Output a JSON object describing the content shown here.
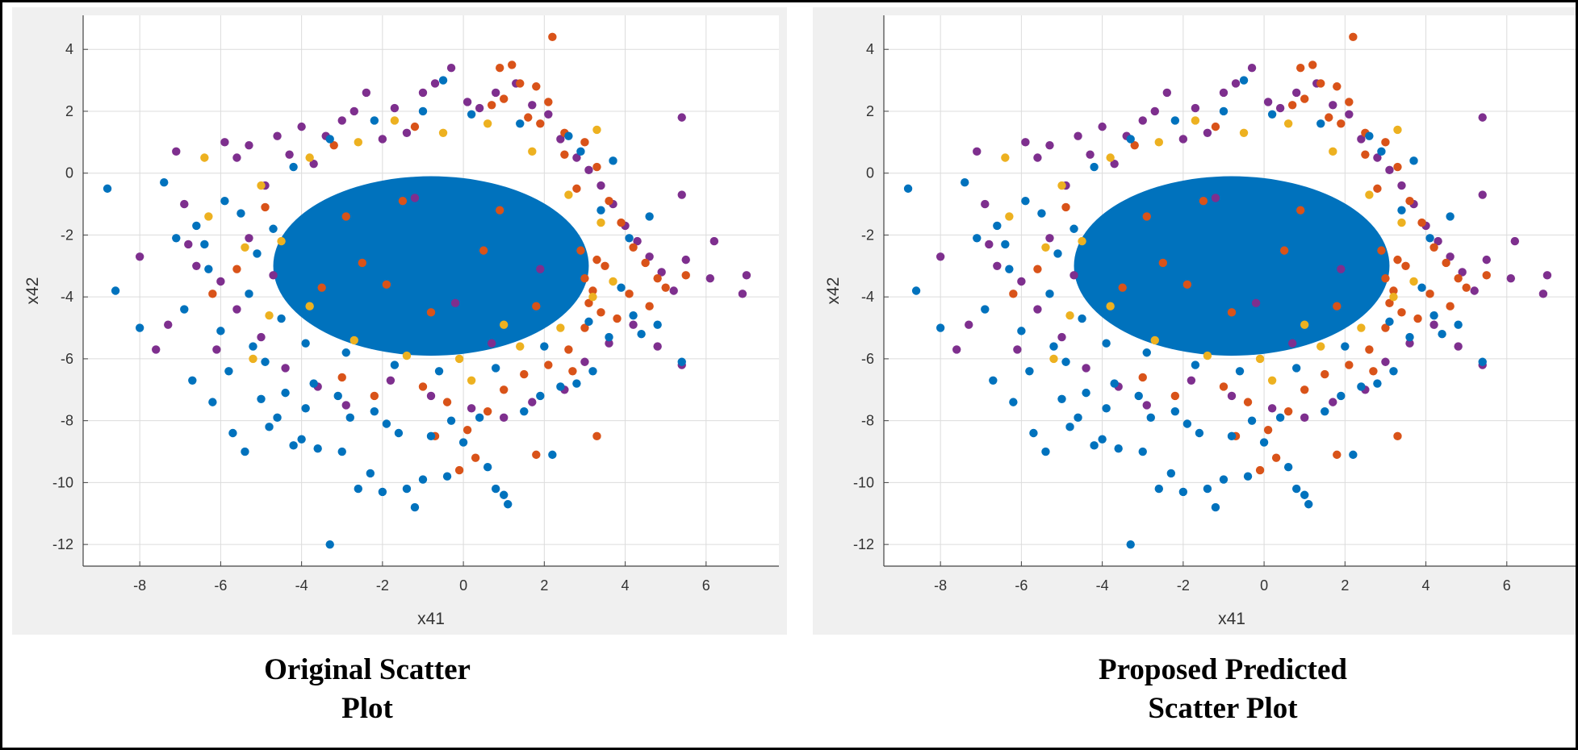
{
  "chart_data": [
    {
      "type": "scatter",
      "title": "Original Scatter Plot",
      "xlabel": "x41",
      "ylabel": "x42",
      "xlim": [
        -9.4,
        7.8
      ],
      "ylim": [
        -12.7,
        5.1
      ],
      "xticks": [
        -8,
        -6,
        -4,
        -2,
        0,
        2,
        4,
        6
      ],
      "yticks": [
        4,
        2,
        0,
        -2,
        -4,
        -6,
        -8,
        -10,
        -12
      ],
      "grid": true,
      "legend": "none",
      "series": [
        {
          "name": "class-1",
          "color": "#0072BD",
          "points": [
            [
              -8.8,
              -0.5
            ],
            [
              -8.6,
              -3.8
            ],
            [
              -8.0,
              -5.0
            ],
            [
              -7.4,
              -0.3
            ],
            [
              -7.1,
              -2.1
            ],
            [
              -6.7,
              -6.7
            ],
            [
              -6.4,
              -2.3
            ],
            [
              -6.2,
              -7.4
            ],
            [
              -6.0,
              -5.1
            ],
            [
              -5.7,
              -8.4
            ],
            [
              -5.4,
              -9.0
            ],
            [
              -5.2,
              -5.6
            ],
            [
              -5.0,
              -7.3
            ],
            [
              -4.8,
              -8.2
            ],
            [
              -4.6,
              -7.9
            ],
            [
              -4.2,
              -8.8
            ],
            [
              -4.0,
              -8.6
            ],
            [
              -3.6,
              -8.9
            ],
            [
              -3.3,
              -12.0
            ],
            [
              -3.0,
              -9.0
            ],
            [
              -2.6,
              -10.2
            ],
            [
              -2.3,
              -9.7
            ],
            [
              -2.0,
              -10.3
            ],
            [
              -1.9,
              -8.1
            ],
            [
              -1.4,
              -10.2
            ],
            [
              -1.2,
              -10.8
            ],
            [
              -1.0,
              -9.9
            ],
            [
              -0.4,
              -9.8
            ],
            [
              0.0,
              -8.7
            ],
            [
              0.6,
              -9.5
            ],
            [
              0.8,
              -10.2
            ],
            [
              1.0,
              -10.4
            ],
            [
              1.1,
              -10.7
            ],
            [
              2.2,
              -9.1
            ],
            [
              2.8,
              -6.8
            ],
            [
              3.2,
              -6.4
            ],
            [
              3.6,
              -5.3
            ],
            [
              4.2,
              -4.6
            ],
            [
              4.4,
              -5.2
            ],
            [
              4.8,
              -4.9
            ],
            [
              5.4,
              -6.1
            ],
            [
              -6.9,
              -4.4
            ],
            [
              -6.3,
              -3.1
            ],
            [
              -6.6,
              -1.7
            ],
            [
              -5.9,
              -0.9
            ],
            [
              -5.5,
              -1.3
            ],
            [
              -5.8,
              -6.4
            ],
            [
              -4.9,
              -6.1
            ],
            [
              -4.4,
              -7.1
            ],
            [
              -3.9,
              -7.6
            ],
            [
              -3.7,
              -6.8
            ],
            [
              -3.1,
              -7.2
            ],
            [
              -2.8,
              -7.9
            ],
            [
              -2.2,
              -7.7
            ],
            [
              -1.6,
              -8.4
            ],
            [
              -0.8,
              -8.5
            ],
            [
              -0.3,
              -8.0
            ],
            [
              0.4,
              -7.9
            ],
            [
              1.5,
              -7.7
            ],
            [
              1.9,
              -7.2
            ],
            [
              2.4,
              -6.9
            ],
            [
              3.9,
              -3.7
            ],
            [
              4.1,
              -2.1
            ],
            [
              4.6,
              -1.4
            ],
            [
              3.7,
              0.4
            ],
            [
              2.9,
              0.7
            ],
            [
              -4.7,
              -1.8
            ],
            [
              -5.1,
              -2.6
            ],
            [
              -5.3,
              -3.9
            ],
            [
              -4.5,
              -4.7
            ],
            [
              -3.9,
              -5.5
            ],
            [
              -2.9,
              -5.8
            ],
            [
              -1.7,
              -6.2
            ],
            [
              -0.6,
              -6.4
            ],
            [
              0.8,
              -6.3
            ],
            [
              2.0,
              -5.6
            ],
            [
              3.1,
              -4.8
            ],
            [
              3.4,
              -1.2
            ],
            [
              2.6,
              1.2
            ],
            [
              1.4,
              1.6
            ],
            [
              0.2,
              1.9
            ],
            [
              -1.0,
              2.0
            ],
            [
              -2.2,
              1.7
            ],
            [
              -3.3,
              1.1
            ],
            [
              -4.2,
              0.2
            ],
            [
              -0.5,
              3.0
            ]
          ]
        },
        {
          "name": "class-2",
          "color": "#D95319",
          "points": [
            [
              2.2,
              4.4
            ],
            [
              1.2,
              3.5
            ],
            [
              0.9,
              3.4
            ],
            [
              1.4,
              2.9
            ],
            [
              1.8,
              2.8
            ],
            [
              2.1,
              2.3
            ],
            [
              0.7,
              2.2
            ],
            [
              1.0,
              2.4
            ],
            [
              1.6,
              1.8
            ],
            [
              1.9,
              1.6
            ],
            [
              2.5,
              1.3
            ],
            [
              3.0,
              1.0
            ],
            [
              3.3,
              0.2
            ],
            [
              3.6,
              -0.9
            ],
            [
              3.9,
              -1.6
            ],
            [
              4.2,
              -2.4
            ],
            [
              4.5,
              -2.9
            ],
            [
              4.8,
              -3.4
            ],
            [
              5.0,
              -3.7
            ],
            [
              5.5,
              -3.3
            ],
            [
              3.5,
              -3.0
            ],
            [
              3.2,
              -3.8
            ],
            [
              3.1,
              -4.2
            ],
            [
              3.3,
              -2.8
            ],
            [
              2.9,
              -2.5
            ],
            [
              3.0,
              -3.4
            ],
            [
              3.4,
              -4.5
            ],
            [
              3.0,
              -5.0
            ],
            [
              2.6,
              -5.7
            ],
            [
              2.1,
              -6.2
            ],
            [
              1.5,
              -6.5
            ],
            [
              1.0,
              -7.0
            ],
            [
              0.6,
              -7.7
            ],
            [
              0.1,
              -8.3
            ],
            [
              -0.4,
              -7.4
            ],
            [
              -1.0,
              -6.9
            ],
            [
              -0.1,
              -9.6
            ],
            [
              0.3,
              -9.2
            ],
            [
              1.8,
              -9.1
            ],
            [
              3.3,
              -8.5
            ],
            [
              -0.7,
              -8.5
            ],
            [
              2.7,
              -6.4
            ],
            [
              -2.2,
              -7.2
            ],
            [
              -3.0,
              -6.6
            ],
            [
              -2.5,
              -2.9
            ],
            [
              -3.5,
              -3.7
            ],
            [
              -2.9,
              -1.4
            ],
            [
              -1.5,
              -0.9
            ],
            [
              1.8,
              -4.3
            ],
            [
              0.5,
              -2.5
            ],
            [
              -0.8,
              -4.5
            ],
            [
              -1.9,
              -3.6
            ],
            [
              0.9,
              -1.2
            ],
            [
              2.5,
              0.6
            ],
            [
              2.8,
              -0.5
            ],
            [
              4.6,
              -4.3
            ],
            [
              4.1,
              -3.9
            ],
            [
              3.8,
              -4.7
            ],
            [
              -4.9,
              -1.1
            ],
            [
              -6.2,
              -3.9
            ],
            [
              -5.6,
              -3.1
            ],
            [
              -3.2,
              0.9
            ],
            [
              -1.2,
              1.5
            ]
          ]
        },
        {
          "name": "class-3",
          "color": "#EDB120",
          "points": [
            [
              -6.4,
              0.5
            ],
            [
              3.3,
              1.4
            ],
            [
              -6.3,
              -1.4
            ],
            [
              -5.4,
              -2.4
            ],
            [
              -5.0,
              -0.4
            ],
            [
              -3.8,
              0.5
            ],
            [
              -2.6,
              1.0
            ],
            [
              -1.7,
              1.7
            ],
            [
              -0.5,
              1.3
            ],
            [
              0.6,
              1.6
            ],
            [
              1.7,
              0.7
            ],
            [
              2.6,
              -0.7
            ],
            [
              3.4,
              -1.6
            ],
            [
              3.7,
              -3.5
            ],
            [
              3.2,
              -4.0
            ],
            [
              2.4,
              -5.0
            ],
            [
              1.4,
              -5.6
            ],
            [
              -0.1,
              -6.0
            ],
            [
              -1.4,
              -5.9
            ],
            [
              -2.7,
              -5.4
            ],
            [
              -3.8,
              -4.3
            ],
            [
              -4.5,
              -2.2
            ],
            [
              -4.8,
              -4.6
            ],
            [
              -5.2,
              -6.0
            ],
            [
              0.2,
              -6.7
            ],
            [
              1.0,
              -4.9
            ]
          ]
        },
        {
          "name": "class-4",
          "color": "#7E2F8E",
          "points": [
            [
              -8.0,
              -2.7
            ],
            [
              -7.6,
              -5.7
            ],
            [
              -7.1,
              0.7
            ],
            [
              -6.9,
              -1.0
            ],
            [
              -6.1,
              -5.7
            ],
            [
              -5.9,
              1.0
            ],
            [
              -5.6,
              0.5
            ],
            [
              -5.3,
              0.9
            ],
            [
              -4.9,
              -0.4
            ],
            [
              -4.6,
              1.2
            ],
            [
              -4.3,
              0.6
            ],
            [
              -4.0,
              1.5
            ],
            [
              -3.7,
              0.3
            ],
            [
              -3.4,
              1.2
            ],
            [
              -3.0,
              1.7
            ],
            [
              -2.7,
              2.0
            ],
            [
              -2.4,
              2.6
            ],
            [
              -2.0,
              1.1
            ],
            [
              -1.7,
              2.1
            ],
            [
              -1.4,
              1.3
            ],
            [
              -1.0,
              2.6
            ],
            [
              -0.7,
              2.9
            ],
            [
              -0.3,
              3.4
            ],
            [
              0.1,
              2.3
            ],
            [
              0.4,
              2.1
            ],
            [
              0.8,
              2.6
            ],
            [
              1.3,
              2.9
            ],
            [
              1.7,
              2.2
            ],
            [
              2.1,
              1.9
            ],
            [
              2.4,
              1.1
            ],
            [
              2.8,
              0.5
            ],
            [
              3.1,
              0.1
            ],
            [
              3.4,
              -0.4
            ],
            [
              3.7,
              -1.0
            ],
            [
              4.0,
              -1.7
            ],
            [
              4.3,
              -2.2
            ],
            [
              4.6,
              -2.7
            ],
            [
              4.9,
              -3.2
            ],
            [
              5.2,
              -3.8
            ],
            [
              5.5,
              -2.8
            ],
            [
              5.4,
              -0.7
            ],
            [
              5.4,
              1.8
            ],
            [
              6.2,
              -2.2
            ],
            [
              6.1,
              -3.4
            ],
            [
              7.0,
              -3.3
            ],
            [
              6.9,
              -3.9
            ],
            [
              5.4,
              -6.2
            ],
            [
              4.8,
              -5.6
            ],
            [
              4.2,
              -4.9
            ],
            [
              3.6,
              -5.5
            ],
            [
              3.0,
              -6.1
            ],
            [
              2.5,
              -7.0
            ],
            [
              1.7,
              -7.4
            ],
            [
              1.0,
              -7.9
            ],
            [
              0.2,
              -7.6
            ],
            [
              -0.8,
              -7.2
            ],
            [
              -1.8,
              -6.7
            ],
            [
              -2.9,
              -7.5
            ],
            [
              -3.6,
              -6.9
            ],
            [
              -4.4,
              -6.3
            ],
            [
              -5.0,
              -5.3
            ],
            [
              -5.6,
              -4.4
            ],
            [
              -6.0,
              -3.5
            ],
            [
              -6.6,
              -3.0
            ],
            [
              -6.8,
              -2.3
            ],
            [
              -7.3,
              -4.9
            ],
            [
              -5.3,
              -2.1
            ],
            [
              -4.7,
              -3.3
            ],
            [
              -0.2,
              -4.2
            ],
            [
              1.9,
              -3.1
            ],
            [
              -1.2,
              -0.8
            ],
            [
              0.7,
              -5.5
            ]
          ]
        }
      ],
      "core_cluster": {
        "series": "class-1",
        "center": [
          -0.8,
          -3.0
        ],
        "rx": 3.9,
        "ry": 2.9
      }
    },
    {
      "type": "scatter",
      "title": "Proposed Predicted Scatter Plot",
      "xlabel": "x41",
      "ylabel": "x42",
      "xlim": [
        -9.4,
        7.8
      ],
      "ylim": [
        -12.7,
        5.1
      ],
      "xticks": [
        -8,
        -6,
        -4,
        -2,
        0,
        2,
        4,
        6
      ],
      "yticks": [
        4,
        2,
        0,
        -2,
        -4,
        -6,
        -8,
        -10,
        -12
      ],
      "grid": true,
      "legend": "none",
      "series_from": 0,
      "core_cluster": {
        "series": "class-1",
        "center": [
          -0.8,
          -3.0
        ],
        "rx": 3.9,
        "ry": 2.9
      }
    }
  ],
  "captions": {
    "left": {
      "line1": "Original Scatter",
      "line2": "Plot"
    },
    "right": {
      "line1": "Proposed Predicted",
      "line2": "Scatter Plot"
    }
  }
}
